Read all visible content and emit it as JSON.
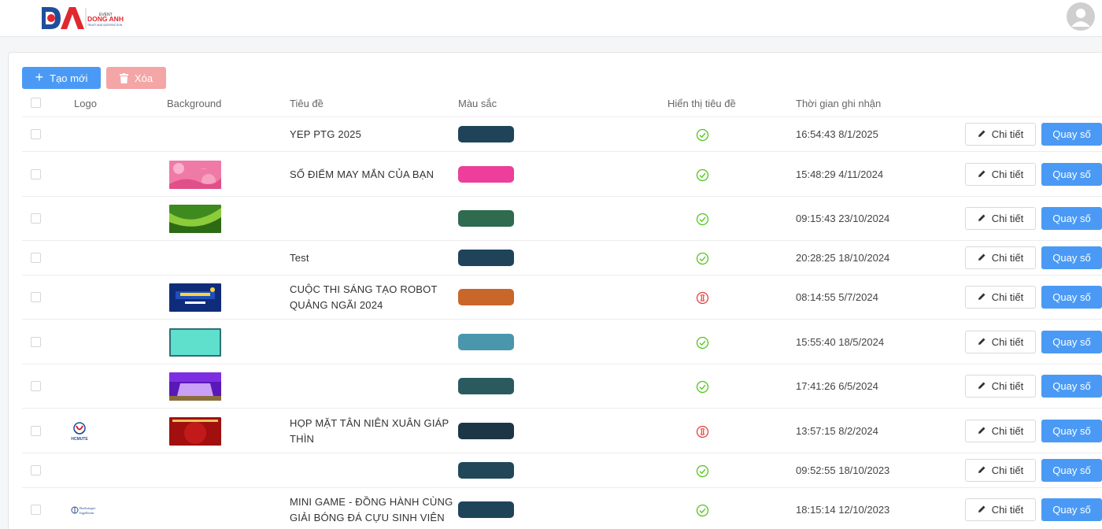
{
  "brand": {
    "logo_letters": "DA",
    "event_label": "EVENT",
    "name": "DONG ANH",
    "tagline": "TRUST AND SATISFACTION",
    "primary_color": "#1f4e9c",
    "accent_color": "#e0282e"
  },
  "toolbar": {
    "create_label": "Tạo mới",
    "delete_label": "Xóa"
  },
  "table": {
    "headers": [
      "Logo",
      "Background",
      "Tiêu đề",
      "Màu sắc",
      "Hiển thị tiêu đề",
      "Thời gian ghi nhận"
    ],
    "actions": {
      "detail_label": "Chi tiết",
      "spin_label": "Quay số"
    },
    "rows": [
      {
        "logo": "",
        "background": "",
        "title_lines": [
          "YEP PTG 2025",
          ""
        ],
        "color": "#1f4459",
        "show_title": true,
        "recorded_at": "16:54:43 8/1/2025"
      },
      {
        "logo": "",
        "background": "pink-floral",
        "title_lines": [
          "SỐ ĐIỂM MAY MẮN CỦA BẠN",
          ""
        ],
        "color": "#ec3e9a",
        "show_title": true,
        "recorded_at": "15:48:29 4/11/2024"
      },
      {
        "logo": "",
        "background": "green-wave",
        "title_lines": [
          "",
          ""
        ],
        "color": "#2e6b4f",
        "show_title": true,
        "recorded_at": "09:15:43 23/10/2024"
      },
      {
        "logo": "",
        "background": "",
        "title_lines": [
          "Test",
          ""
        ],
        "color": "#1f4459",
        "show_title": true,
        "recorded_at": "20:28:25 18/10/2024"
      },
      {
        "logo": "",
        "background": "robot-contest",
        "title_lines": [
          "CUỘC THI SÁNG TẠO ROBOT",
          "QUẢNG NGÃI 2024"
        ],
        "color": "#c9662a",
        "show_title": false,
        "recorded_at": "08:14:55 5/7/2024"
      },
      {
        "logo": "",
        "background": "teal-frame",
        "title_lines": [
          "",
          ""
        ],
        "color": "#4996ad",
        "show_title": true,
        "recorded_at": "15:55:40 18/5/2024"
      },
      {
        "logo": "",
        "background": "purple-stage",
        "title_lines": [
          "",
          ""
        ],
        "color": "#2a5a5e",
        "show_title": true,
        "recorded_at": "17:41:26 6/5/2024"
      },
      {
        "logo": "hcmute",
        "background": "red-tet",
        "title_lines": [
          "HỌP MẶT TÂN NIÊN XUÂN GIÁP",
          "THÌN"
        ],
        "color": "#1c3645",
        "show_title": false,
        "recorded_at": "13:57:15 8/2/2024"
      },
      {
        "logo": "",
        "background": "",
        "title_lines": [
          "",
          ""
        ],
        "color": "#214759",
        "show_title": true,
        "recorded_at": "09:52:55 18/10/2023"
      },
      {
        "logo": "boehringer",
        "background": "",
        "title_lines": [
          "MINI GAME - ĐỒNG HÀNH CÙNG",
          "GIẢI BÓNG ĐÁ CỰU SINH VIÊN"
        ],
        "color": "#1f4459",
        "show_title": true,
        "recorded_at": "18:15:14 12/10/2023"
      }
    ],
    "logo_texts": {
      "hcmute": "HCMUTE",
      "boehringer_1": "Boehringer",
      "boehringer_2": "Ingelheim"
    }
  }
}
